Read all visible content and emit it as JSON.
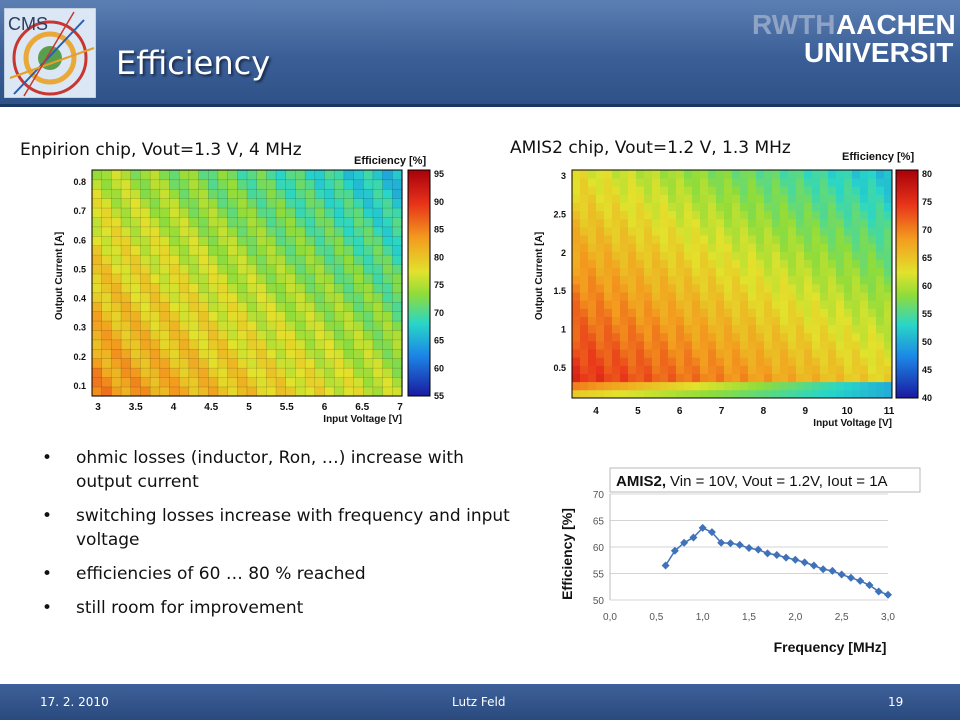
{
  "header": {
    "title": "Efficiency",
    "logo_text": "CMS",
    "university_line1_a": "RWTH",
    "university_line1_b": "AACHEN",
    "university_line2": "UNIVERSITY"
  },
  "plots": {
    "left_title": "Enpirion chip, Vout=1.3 V, 4 MHz",
    "right_title": "AMIS2 chip, Vout=1.2 V, 1.3 MHz",
    "left_zlabel": "Efficiency [%]",
    "right_zlabel": "Efficiency [%]",
    "left_ylabel": "Output Current [A]",
    "right_ylabel": "Output Current [A]",
    "left_xlabel": "Input Voltage [V]",
    "right_xlabel": "Input Voltage [V]",
    "left_yticks": [
      "0.1",
      "0.2",
      "0.3",
      "0.4",
      "0.5",
      "0.6",
      "0.7",
      "0.8"
    ],
    "left_xticks": [
      "3",
      "3.5",
      "4",
      "4.5",
      "5",
      "5.5",
      "6",
      "6.5",
      "7"
    ],
    "left_zticks": [
      "95",
      "90",
      "85",
      "80",
      "75",
      "70",
      "65",
      "60",
      "55"
    ],
    "right_yticks": [
      "0.5",
      "1",
      "1.5",
      "2",
      "2.5",
      "3"
    ],
    "right_xticks": [
      "4",
      "5",
      "6",
      "7",
      "8",
      "9",
      "10",
      "11"
    ],
    "right_zticks": [
      "80",
      "75",
      "70",
      "65",
      "60",
      "55",
      "50",
      "45",
      "40"
    ]
  },
  "bullets": [
    "ohmic losses (inductor, Ron, …) increase with output current",
    "switching losses increase with frequency and input voltage",
    "efficiencies of 60 … 80 % reached",
    "still room for improvement"
  ],
  "bullet_symbol": "•",
  "chart_data": {
    "type": "line",
    "title_bold": "AMIS2,",
    "title_rest": "Vin = 10V, Vout = 1.2V, Iout = 1A",
    "xlabel": "Frequency [MHz]",
    "ylabel": "Efficiency [%]",
    "xlim": [
      0.0,
      3.0
    ],
    "ylim": [
      50,
      70
    ],
    "xticks": [
      "0,0",
      "0,5",
      "1,0",
      "1,5",
      "2,0",
      "2,5",
      "3,0"
    ],
    "yticks": [
      "50",
      "55",
      "60",
      "65",
      "70"
    ],
    "grid": true,
    "color": "#3f72b8",
    "x": [
      0.6,
      0.7,
      0.8,
      0.9,
      1.0,
      1.1,
      1.2,
      1.3,
      1.4,
      1.5,
      1.6,
      1.7,
      1.8,
      1.9,
      2.0,
      2.1,
      2.2,
      2.3,
      2.4,
      2.5,
      2.6,
      2.7,
      2.8,
      2.9,
      3.0
    ],
    "y": [
      56.5,
      59.3,
      60.8,
      61.8,
      63.6,
      62.8,
      60.8,
      60.7,
      60.4,
      59.8,
      59.5,
      58.8,
      58.5,
      58.0,
      57.6,
      57.1,
      56.5,
      55.8,
      55.5,
      54.8,
      54.2,
      53.6,
      52.8,
      51.6,
      51.0
    ]
  },
  "footer": {
    "date": "17. 2. 2010",
    "author": "Lutz Feld",
    "page": "19"
  }
}
